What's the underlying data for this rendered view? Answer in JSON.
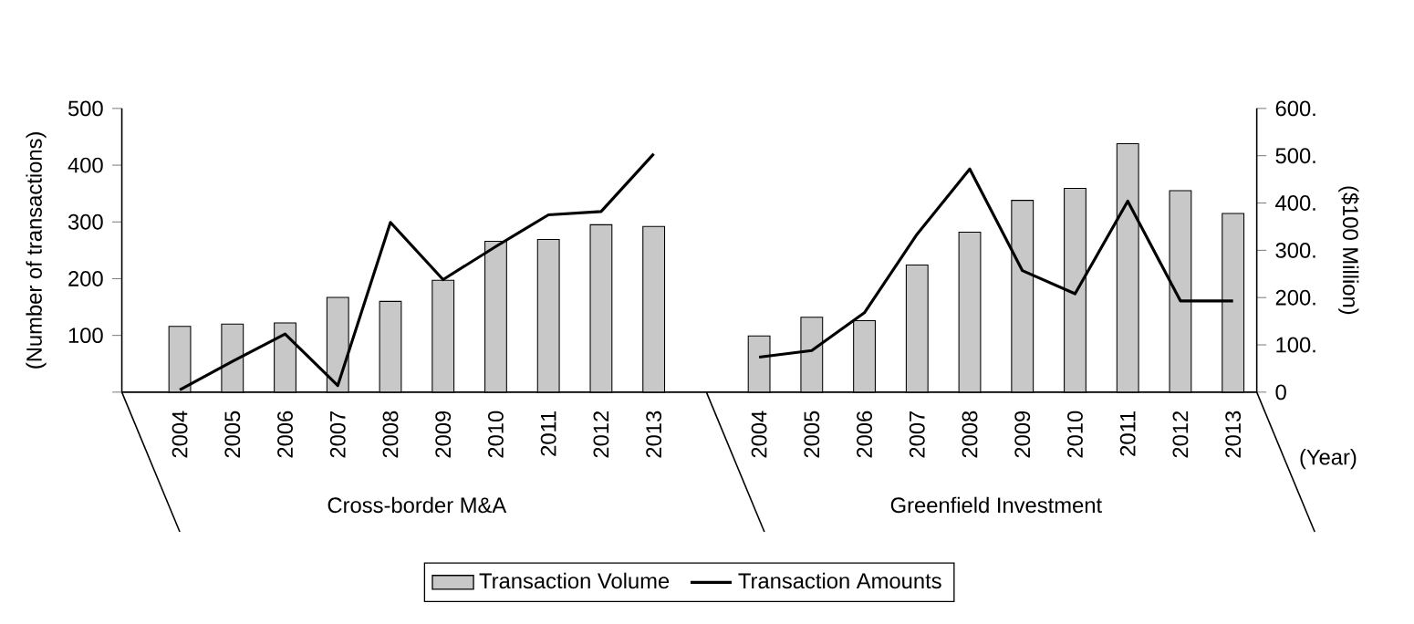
{
  "chart_data": {
    "type": "bar",
    "xlabel": "(Year)",
    "ylabel": "(Number of transactions)",
    "y2label": "($100 Million)",
    "categories": [
      "2004",
      "2005",
      "2006",
      "2007",
      "2008",
      "2009",
      "2010",
      "2011",
      "2012",
      "2013",
      null,
      "2004",
      "2005",
      "2006",
      "2007",
      "2008",
      "2009",
      "2010",
      "2011",
      "2012",
      "2013"
    ],
    "series": [
      {
        "name": "Transaction Volume",
        "color": "#c8c8c8",
        "values": [
          116,
          120,
          122,
          167,
          160,
          197,
          266,
          269,
          295,
          292,
          null,
          99,
          132,
          126,
          224,
          282,
          338,
          359,
          438,
          355,
          315
        ]
      },
      {
        "name": "Transaction Amounts",
        "type": "line",
        "axis": "y2",
        "color": "#000000",
        "values": [
          5,
          65,
          123,
          14,
          359,
          238,
          308,
          375,
          382,
          504,
          null,
          74,
          88,
          168,
          334,
          472,
          257,
          208,
          404,
          193,
          193
        ]
      }
    ],
    "ylim": [
      0,
      500
    ],
    "yticks": [
      {
        "value": 0,
        "label": null
      },
      100,
      200,
      300,
      400,
      500
    ],
    "y2lim": [
      0,
      600
    ],
    "y2ticks": [
      {
        "value": 0,
        "label": "0"
      },
      {
        "value": 100,
        "label": "100."
      },
      {
        "value": 200,
        "label": "200."
      },
      {
        "value": 300,
        "label": "300."
      },
      {
        "value": 400,
        "label": "400."
      },
      {
        "value": 500,
        "label": "500."
      },
      {
        "value": 600,
        "label": "600."
      }
    ],
    "annotations": [
      "Cross-border M&A",
      "Greenfield Investment"
    ],
    "legend": "bottom"
  }
}
